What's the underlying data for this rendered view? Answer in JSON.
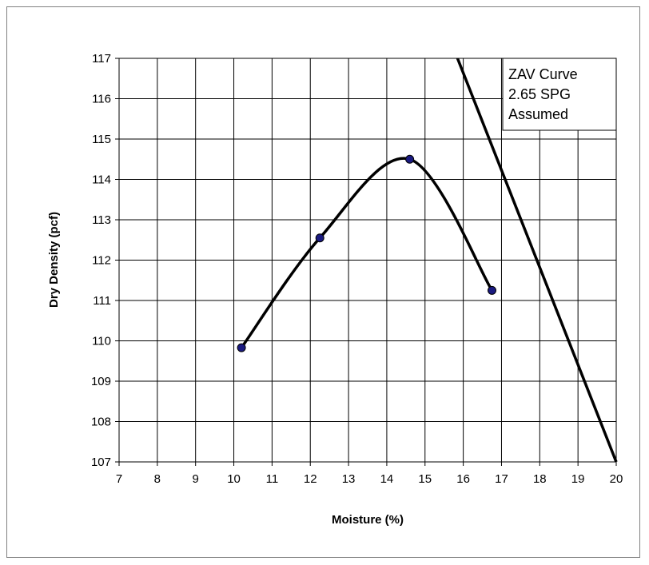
{
  "chart_data": {
    "type": "scatter",
    "title": "",
    "xlabel": "Moisture (%)",
    "ylabel": "Dry Density (pcf)",
    "xlim": [
      7,
      20
    ],
    "ylim": [
      107,
      117
    ],
    "x_ticks": [
      "7",
      "8",
      "9",
      "10",
      "11",
      "12",
      "13",
      "14",
      "15",
      "16",
      "17",
      "18",
      "19",
      "20"
    ],
    "y_ticks": [
      "107",
      "108",
      "109",
      "110",
      "111",
      "112",
      "113",
      "114",
      "115",
      "116",
      "117"
    ],
    "grid": true,
    "series": [
      {
        "type": "scatter-smooth",
        "x": [
          10.2,
          12.25,
          14.6,
          16.75
        ],
        "y": [
          109.83,
          112.55,
          114.5,
          111.25
        ],
        "color": "#000000",
        "marker_color": "#1a1a80"
      },
      {
        "type": "line",
        "x": [
          15.85,
          20.0
        ],
        "y": [
          117.0,
          107.0
        ],
        "color": "#000000"
      }
    ],
    "annotation": {
      "lines": [
        "ZAV Curve",
        "2.65 SPG",
        "Assumed"
      ],
      "placement": "top-right"
    }
  }
}
